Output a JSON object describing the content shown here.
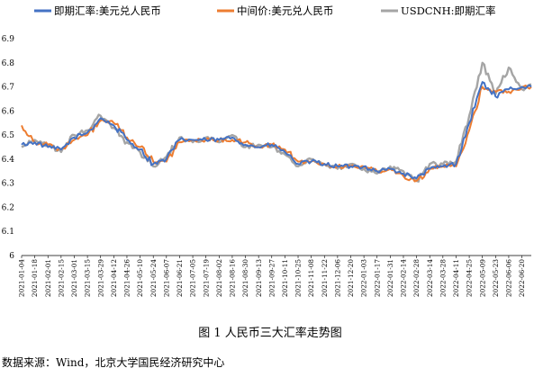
{
  "chart_data": {
    "type": "line",
    "caption": "图 1  人民币三大汇率走势图",
    "source": "数据来源：Wind，北京大学国民经济研究中心",
    "ylim": [
      6,
      6.9
    ],
    "yticks": [
      "6",
      "6.1",
      "6.2",
      "6.3",
      "6.4",
      "6.5",
      "6.6",
      "6.7",
      "6.8",
      "6.9"
    ],
    "xlim": [
      "2021-01-04",
      "2022-06-30"
    ],
    "xticks": [
      "2021-01-04",
      "2021-01-18",
      "2021-02-01",
      "2021-02-15",
      "2021-03-01",
      "2021-03-15",
      "2021-03-29",
      "2021-04-12",
      "2021-04-26",
      "2021-05-10",
      "2021-05-24",
      "2021-06-07",
      "2021-06-21",
      "2021-07-05",
      "2021-07-19",
      "2021-08-02",
      "2021-08-16",
      "2021-08-30",
      "2021-09-13",
      "2021-09-27",
      "2021-10-11",
      "2021-10-25",
      "2021-11-08",
      "2021-11-22",
      "2021-12-06",
      "2021-12-20",
      "2022-01-03",
      "2022-01-17",
      "2022-01-31",
      "2022-02-14",
      "2022-02-28",
      "2022-03-14",
      "2022-03-28",
      "2022-04-11",
      "2022-04-25",
      "2022-05-09",
      "2022-05-23",
      "2022-06-06",
      "2022-06-20"
    ],
    "legend_position": "top",
    "grid": false,
    "series": [
      {
        "name": "即期汇率:美元兑人民币",
        "color": "#4472C4",
        "x": [
          "2021-01-04",
          "2021-01-18",
          "2021-02-01",
          "2021-02-15",
          "2021-03-01",
          "2021-03-15",
          "2021-03-29",
          "2021-04-12",
          "2021-04-26",
          "2021-05-10",
          "2021-05-24",
          "2021-06-07",
          "2021-06-21",
          "2021-07-05",
          "2021-07-19",
          "2021-08-02",
          "2021-08-16",
          "2021-08-30",
          "2021-09-13",
          "2021-09-27",
          "2021-10-11",
          "2021-10-25",
          "2021-11-08",
          "2021-11-22",
          "2021-12-06",
          "2021-12-20",
          "2022-01-03",
          "2022-01-17",
          "2022-01-31",
          "2022-02-14",
          "2022-02-28",
          "2022-03-14",
          "2022-03-28",
          "2022-04-11",
          "2022-04-25",
          "2022-05-09",
          "2022-05-23",
          "2022-06-06",
          "2022-06-20",
          "2022-06-30"
        ],
        "y": [
          6.46,
          6.47,
          6.45,
          6.44,
          6.49,
          6.51,
          6.57,
          6.54,
          6.48,
          6.44,
          6.38,
          6.4,
          6.48,
          6.48,
          6.48,
          6.48,
          6.49,
          6.46,
          6.45,
          6.46,
          6.43,
          6.38,
          6.39,
          6.38,
          6.37,
          6.37,
          6.37,
          6.35,
          6.36,
          6.34,
          6.32,
          6.36,
          6.37,
          6.38,
          6.55,
          6.72,
          6.66,
          6.69,
          6.7,
          6.7
        ]
      },
      {
        "name": "中间价:美元兑人民币",
        "color": "#ED7D31",
        "x": [
          "2021-01-04",
          "2021-01-18",
          "2021-02-01",
          "2021-02-15",
          "2021-03-01",
          "2021-03-15",
          "2021-03-29",
          "2021-04-12",
          "2021-04-26",
          "2021-05-10",
          "2021-05-24",
          "2021-06-07",
          "2021-06-21",
          "2021-07-05",
          "2021-07-19",
          "2021-08-02",
          "2021-08-16",
          "2021-08-30",
          "2021-09-13",
          "2021-09-27",
          "2021-10-11",
          "2021-10-25",
          "2021-11-08",
          "2021-11-22",
          "2021-12-06",
          "2021-12-20",
          "2022-01-03",
          "2022-01-17",
          "2022-01-31",
          "2022-02-14",
          "2022-02-28",
          "2022-03-14",
          "2022-03-28",
          "2022-04-11",
          "2022-04-25",
          "2022-05-09",
          "2022-05-23",
          "2022-06-06",
          "2022-06-20",
          "2022-06-30"
        ],
        "y": [
          6.54,
          6.47,
          6.46,
          6.44,
          6.48,
          6.5,
          6.56,
          6.55,
          6.49,
          6.45,
          6.39,
          6.39,
          6.47,
          6.48,
          6.48,
          6.48,
          6.48,
          6.47,
          6.45,
          6.46,
          6.44,
          6.39,
          6.39,
          6.38,
          6.37,
          6.37,
          6.37,
          6.35,
          6.36,
          6.33,
          6.31,
          6.36,
          6.37,
          6.37,
          6.52,
          6.7,
          6.68,
          6.68,
          6.7,
          6.7
        ]
      },
      {
        "name": "USDCNH:即期汇率",
        "color": "#A5A5A5",
        "x": [
          "2021-01-04",
          "2021-01-18",
          "2021-02-01",
          "2021-02-15",
          "2021-03-01",
          "2021-03-15",
          "2021-03-29",
          "2021-04-12",
          "2021-04-26",
          "2021-05-10",
          "2021-05-24",
          "2021-06-07",
          "2021-06-21",
          "2021-07-05",
          "2021-07-19",
          "2021-08-02",
          "2021-08-16",
          "2021-08-30",
          "2021-09-13",
          "2021-09-27",
          "2021-10-11",
          "2021-10-25",
          "2021-11-08",
          "2021-11-22",
          "2021-12-06",
          "2021-12-20",
          "2022-01-03",
          "2022-01-17",
          "2022-01-31",
          "2022-02-14",
          "2022-02-28",
          "2022-03-14",
          "2022-03-28",
          "2022-04-11",
          "2022-04-25",
          "2022-05-09",
          "2022-05-23",
          "2022-06-06",
          "2022-06-20",
          "2022-06-30"
        ],
        "y": [
          6.45,
          6.48,
          6.46,
          6.43,
          6.5,
          6.52,
          6.58,
          6.53,
          6.47,
          6.43,
          6.37,
          6.41,
          6.49,
          6.47,
          6.49,
          6.47,
          6.5,
          6.45,
          6.46,
          6.45,
          6.42,
          6.37,
          6.4,
          6.38,
          6.36,
          6.38,
          6.36,
          6.34,
          6.37,
          6.35,
          6.31,
          6.38,
          6.38,
          6.39,
          6.58,
          6.8,
          6.67,
          6.78,
          6.69,
          6.71
        ]
      }
    ]
  }
}
